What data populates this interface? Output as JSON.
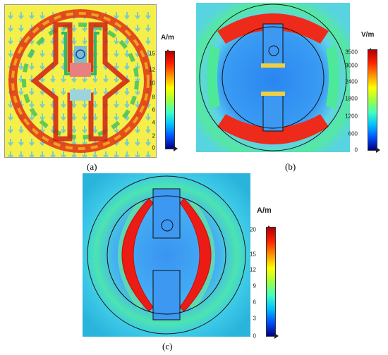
{
  "panels": [
    {
      "caption": "(a)",
      "unit": "A/m",
      "ticks": [
        "15",
        "12",
        "10",
        "8",
        "6",
        "4",
        "2",
        "0"
      ]
    },
    {
      "caption": "(b)",
      "unit": "V/m",
      "ticks": [
        "3500",
        "3000",
        "2400",
        "1800",
        "1200",
        "600",
        "0"
      ]
    },
    {
      "caption": "(c)",
      "unit": "A/m",
      "ticks": [
        "20",
        "15",
        "12",
        "9",
        "6",
        "3",
        "0"
      ]
    }
  ],
  "colors": {
    "jet_stops": [
      "#00007f",
      "#0050ff",
      "#00c0ff",
      "#40ffc0",
      "#a0ff40",
      "#ffff00",
      "#ff9000",
      "#ff2000",
      "#b00000"
    ],
    "panel_a_background": "#f5ef4a",
    "field_low": "#3b8cf2",
    "field_mid": "#2fd2e0",
    "field_high": "#f01818"
  }
}
